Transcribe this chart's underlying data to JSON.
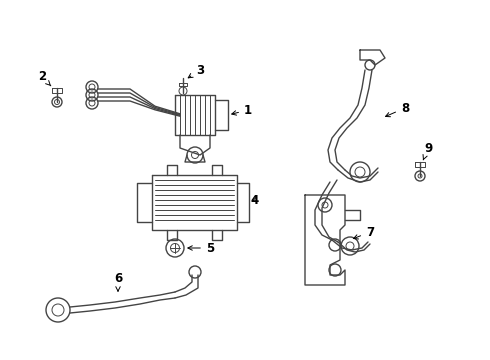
{
  "background_color": "#ffffff",
  "line_color": "#444444",
  "label_color": "#000000",
  "figsize": [
    4.9,
    3.6
  ],
  "dpi": 100,
  "label_fontsize": 8.5
}
